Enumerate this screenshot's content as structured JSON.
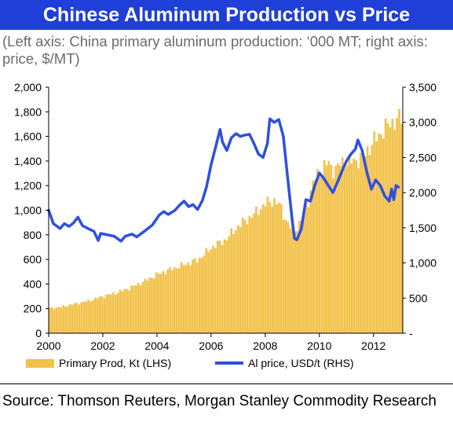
{
  "title": "Chinese Aluminum Production vs Price",
  "subtitle": "(Left axis: China primary aluminum production: ‘000 MT; right axis: price, $/MT)",
  "source": "Source: Thomson Reuters, Morgan Stanley Commodity Research",
  "colors": {
    "title_bg": "#1f3fd8",
    "bars": "#f2c24b",
    "line": "#2f50e0",
    "subtitle": "#6b6b6b"
  },
  "chart_data": {
    "type": "bar+line",
    "x_ticks": [
      "2000",
      "2002",
      "2004",
      "2006",
      "2008",
      "2010",
      "2012"
    ],
    "left_axis": {
      "range": [
        0,
        2000
      ],
      "ticks": [
        "0",
        "200",
        "400",
        "600",
        "800",
        "1,000",
        "1,200",
        "1,400",
        "1,600",
        "1,800",
        "2,000"
      ]
    },
    "right_axis": {
      "range": [
        0,
        3500
      ],
      "ticks": [
        "-",
        "500",
        "1,000",
        "1,500",
        "2,000",
        "2,500",
        "3,000",
        "3,500"
      ]
    },
    "series": [
      {
        "name": "Primary Prod, Kt (LHS)",
        "kind": "bar",
        "axis": "left",
        "points": [
          [
            2000.0,
            200
          ],
          [
            2000.5,
            215
          ],
          [
            2001.0,
            240
          ],
          [
            2001.5,
            265
          ],
          [
            2002.0,
            300
          ],
          [
            2002.5,
            330
          ],
          [
            2003.0,
            370
          ],
          [
            2003.5,
            420
          ],
          [
            2004.0,
            480
          ],
          [
            2004.5,
            520
          ],
          [
            2005.0,
            560
          ],
          [
            2005.5,
            600
          ],
          [
            2006.0,
            700
          ],
          [
            2006.5,
            760
          ],
          [
            2007.0,
            880
          ],
          [
            2007.5,
            960
          ],
          [
            2008.0,
            1060
          ],
          [
            2008.25,
            1080
          ],
          [
            2008.5,
            1040
          ],
          [
            2008.75,
            900
          ],
          [
            2009.0,
            830
          ],
          [
            2009.25,
            900
          ],
          [
            2009.5,
            1050
          ],
          [
            2009.75,
            1250
          ],
          [
            2010.0,
            1320
          ],
          [
            2010.25,
            1390
          ],
          [
            2010.5,
            1320
          ],
          [
            2010.75,
            1390
          ],
          [
            2011.0,
            1390
          ],
          [
            2011.5,
            1420
          ],
          [
            2012.0,
            1580
          ],
          [
            2012.5,
            1700
          ],
          [
            2012.92,
            1750
          ]
        ]
      },
      {
        "name": "Al price, USD/t (RHS)",
        "kind": "line",
        "axis": "right",
        "points": [
          [
            2000.0,
            1750
          ],
          [
            2000.17,
            1560
          ],
          [
            2000.42,
            1490
          ],
          [
            2000.58,
            1560
          ],
          [
            2000.75,
            1520
          ],
          [
            2000.92,
            1570
          ],
          [
            2001.08,
            1650
          ],
          [
            2001.25,
            1530
          ],
          [
            2001.5,
            1480
          ],
          [
            2001.67,
            1450
          ],
          [
            2001.83,
            1320
          ],
          [
            2001.92,
            1420
          ],
          [
            2002.17,
            1400
          ],
          [
            2002.42,
            1380
          ],
          [
            2002.67,
            1310
          ],
          [
            2002.83,
            1380
          ],
          [
            2003.08,
            1410
          ],
          [
            2003.25,
            1370
          ],
          [
            2003.5,
            1440
          ],
          [
            2003.83,
            1540
          ],
          [
            2004.08,
            1680
          ],
          [
            2004.25,
            1730
          ],
          [
            2004.42,
            1690
          ],
          [
            2004.67,
            1750
          ],
          [
            2004.83,
            1820
          ],
          [
            2005.0,
            1880
          ],
          [
            2005.17,
            1800
          ],
          [
            2005.33,
            1830
          ],
          [
            2005.5,
            1760
          ],
          [
            2005.67,
            1880
          ],
          [
            2005.83,
            2080
          ],
          [
            2006.0,
            2400
          ],
          [
            2006.17,
            2650
          ],
          [
            2006.33,
            2900
          ],
          [
            2006.42,
            2720
          ],
          [
            2006.58,
            2600
          ],
          [
            2006.75,
            2780
          ],
          [
            2006.92,
            2840
          ],
          [
            2007.08,
            2800
          ],
          [
            2007.25,
            2820
          ],
          [
            2007.42,
            2830
          ],
          [
            2007.58,
            2700
          ],
          [
            2007.75,
            2550
          ],
          [
            2007.92,
            2500
          ],
          [
            2008.08,
            2700
          ],
          [
            2008.17,
            3050
          ],
          [
            2008.33,
            3000
          ],
          [
            2008.5,
            3040
          ],
          [
            2008.67,
            2800
          ],
          [
            2008.83,
            2200
          ],
          [
            2009.0,
            1600
          ],
          [
            2009.08,
            1350
          ],
          [
            2009.17,
            1330
          ],
          [
            2009.33,
            1480
          ],
          [
            2009.5,
            1900
          ],
          [
            2009.67,
            1880
          ],
          [
            2009.83,
            2100
          ],
          [
            2010.0,
            2280
          ],
          [
            2010.17,
            2200
          ],
          [
            2010.33,
            2100
          ],
          [
            2010.5,
            2000
          ],
          [
            2010.67,
            2150
          ],
          [
            2010.83,
            2300
          ],
          [
            2011.0,
            2450
          ],
          [
            2011.17,
            2550
          ],
          [
            2011.33,
            2620
          ],
          [
            2011.42,
            2750
          ],
          [
            2011.58,
            2600
          ],
          [
            2011.75,
            2300
          ],
          [
            2011.92,
            2050
          ],
          [
            2012.08,
            2180
          ],
          [
            2012.25,
            2100
          ],
          [
            2012.42,
            1950
          ],
          [
            2012.58,
            1880
          ],
          [
            2012.67,
            2050
          ],
          [
            2012.75,
            1900
          ],
          [
            2012.83,
            2100
          ],
          [
            2012.92,
            2080
          ]
        ]
      }
    ],
    "legend": [
      "Primary Prod, Kt (LHS)",
      "Al price, USD/t (RHS)"
    ],
    "legend_position": "bottom",
    "grid": false
  }
}
